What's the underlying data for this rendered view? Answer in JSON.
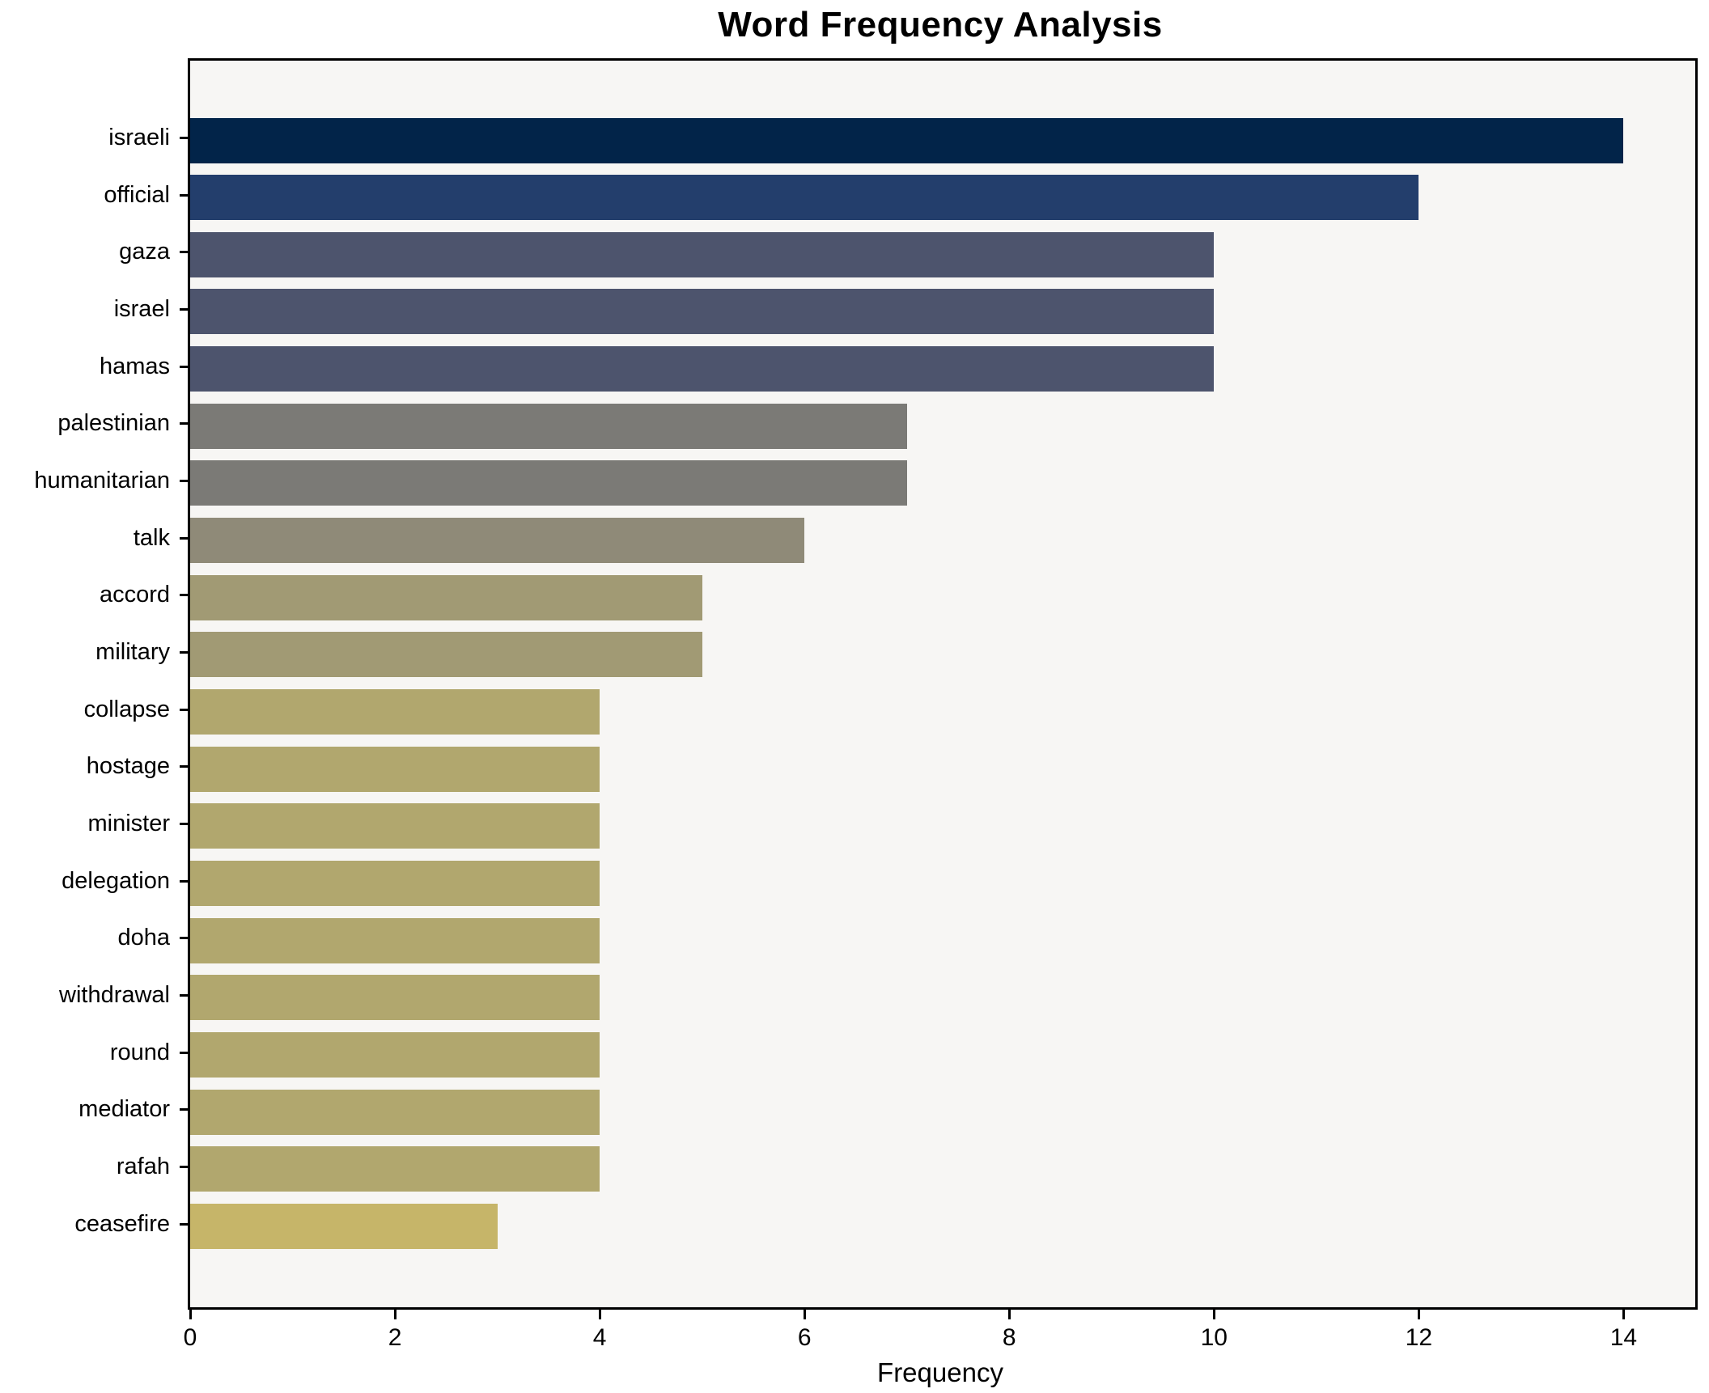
{
  "chart_data": {
    "type": "bar",
    "orientation": "horizontal",
    "title": "Word Frequency Analysis",
    "xlabel": "Frequency",
    "ylabel": "",
    "categories": [
      "israeli",
      "official",
      "gaza",
      "israel",
      "hamas",
      "palestinian",
      "humanitarian",
      "talk",
      "accord",
      "military",
      "collapse",
      "hostage",
      "minister",
      "delegation",
      "doha",
      "withdrawal",
      "round",
      "mediator",
      "rafah",
      "ceasefire"
    ],
    "values": [
      14,
      12,
      10,
      10,
      10,
      7,
      7,
      6,
      5,
      5,
      4,
      4,
      4,
      4,
      4,
      4,
      4,
      4,
      4,
      3
    ],
    "bar_colors": [
      "#022449",
      "#233e6c",
      "#4d546d",
      "#4d546d",
      "#4d546d",
      "#7b7a76",
      "#7b7a76",
      "#8f8a78",
      "#a19a74",
      "#a19a74",
      "#b1a76e",
      "#b1a76e",
      "#b1a76e",
      "#b1a76e",
      "#b1a76e",
      "#b1a76e",
      "#b1a76e",
      "#b1a76e",
      "#b1a76e",
      "#c6b569"
    ],
    "xlim": [
      0,
      14.7
    ],
    "xticks": [
      0,
      2,
      4,
      6,
      8,
      10,
      12,
      14
    ],
    "grid": false,
    "legend": null,
    "plot_background": "#f7f6f4",
    "figure_background": "#ffffff",
    "colormap_hint": "cividis-dark-to-khaki by descending frequency"
  }
}
